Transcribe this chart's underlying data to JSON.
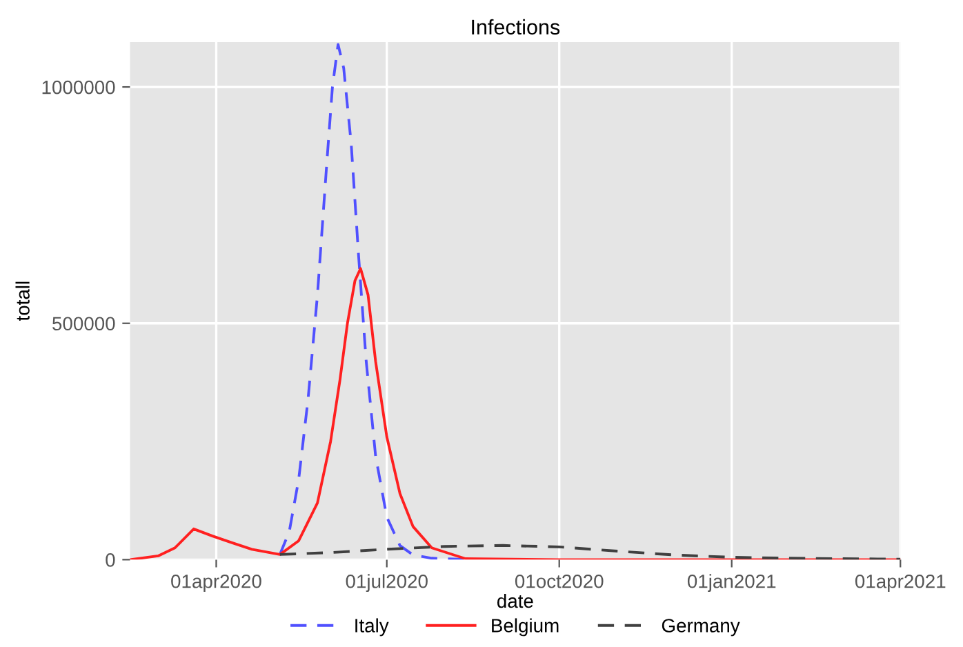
{
  "chart_data": {
    "type": "line",
    "title": "Infections",
    "xlabel": "date",
    "ylabel": "totall",
    "xlim": [
      "2020-02-15",
      "2021-04-01"
    ],
    "xticks": [
      {
        "value": "2020-04-01",
        "label": "01apr2020"
      },
      {
        "value": "2020-07-01",
        "label": "01jul2020"
      },
      {
        "value": "2020-10-01",
        "label": "01oct2020"
      },
      {
        "value": "2021-01-01",
        "label": "01jan2021"
      },
      {
        "value": "2021-04-01",
        "label": "01apr2021"
      }
    ],
    "ylim": [
      0,
      1095000
    ],
    "yticks": [
      0,
      500000,
      1000000
    ],
    "grid": true,
    "legend": "bottom",
    "series": [
      {
        "name": "Italy",
        "color": "#5050ff",
        "line_style": "dashed",
        "x": [
          "2020-05-05",
          "2020-05-10",
          "2020-05-15",
          "2020-05-20",
          "2020-05-25",
          "2020-05-30",
          "2020-06-02",
          "2020-06-05",
          "2020-06-08",
          "2020-06-12",
          "2020-06-16",
          "2020-06-20",
          "2020-06-25",
          "2020-07-01",
          "2020-07-08",
          "2020-07-15",
          "2020-07-25",
          "2020-08-16"
        ],
        "values": [
          11000,
          60000,
          170000,
          340000,
          560000,
          840000,
          1000000,
          1090000,
          1040000,
          880000,
          640000,
          420000,
          220000,
          90000,
          30000,
          10000,
          3000,
          0
        ]
      },
      {
        "name": "Belgium",
        "color": "#ff2020",
        "line_style": "solid",
        "x": [
          "2020-02-15",
          "2020-03-01",
          "2020-03-10",
          "2020-03-20",
          "2020-03-30",
          "2020-04-10",
          "2020-04-20",
          "2020-05-05",
          "2020-05-15",
          "2020-05-25",
          "2020-06-01",
          "2020-06-06",
          "2020-06-10",
          "2020-06-14",
          "2020-06-17",
          "2020-06-21",
          "2020-06-25",
          "2020-07-01",
          "2020-07-08",
          "2020-07-15",
          "2020-07-25",
          "2020-08-12",
          "2020-10-01",
          "2021-04-01"
        ],
        "values": [
          0,
          8000,
          25000,
          65000,
          50000,
          35000,
          22000,
          11000,
          40000,
          120000,
          250000,
          380000,
          500000,
          590000,
          616000,
          560000,
          420000,
          260000,
          140000,
          70000,
          25000,
          2000,
          0,
          0
        ]
      },
      {
        "name": "Germany",
        "color": "#404040",
        "line_style": "dashed",
        "x": [
          "2020-05-05",
          "2020-06-01",
          "2020-07-01",
          "2020-08-01",
          "2020-09-01",
          "2020-10-01",
          "2020-11-01",
          "2020-12-01",
          "2021-01-01",
          "2021-02-01",
          "2021-04-01"
        ],
        "values": [
          11000,
          15000,
          22000,
          28000,
          30000,
          27000,
          18000,
          10000,
          5000,
          3000,
          1000
        ]
      }
    ]
  }
}
